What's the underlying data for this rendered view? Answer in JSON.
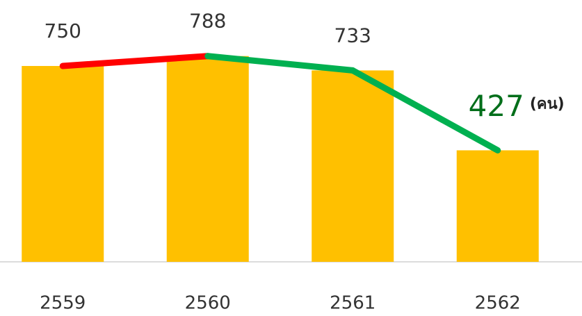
{
  "chart_data": {
    "type": "bar",
    "categories": [
      "2559",
      "2560",
      "2561",
      "2562"
    ],
    "values": [
      750,
      788,
      733,
      427
    ],
    "color": "#ffc000",
    "ylim": [
      0,
      1000
    ],
    "trend_line": true,
    "line_colors": {
      "up": "#ff0000",
      "down": "#00b050"
    },
    "highlight_color": "#006e1a",
    "annotation": "(คน)"
  }
}
